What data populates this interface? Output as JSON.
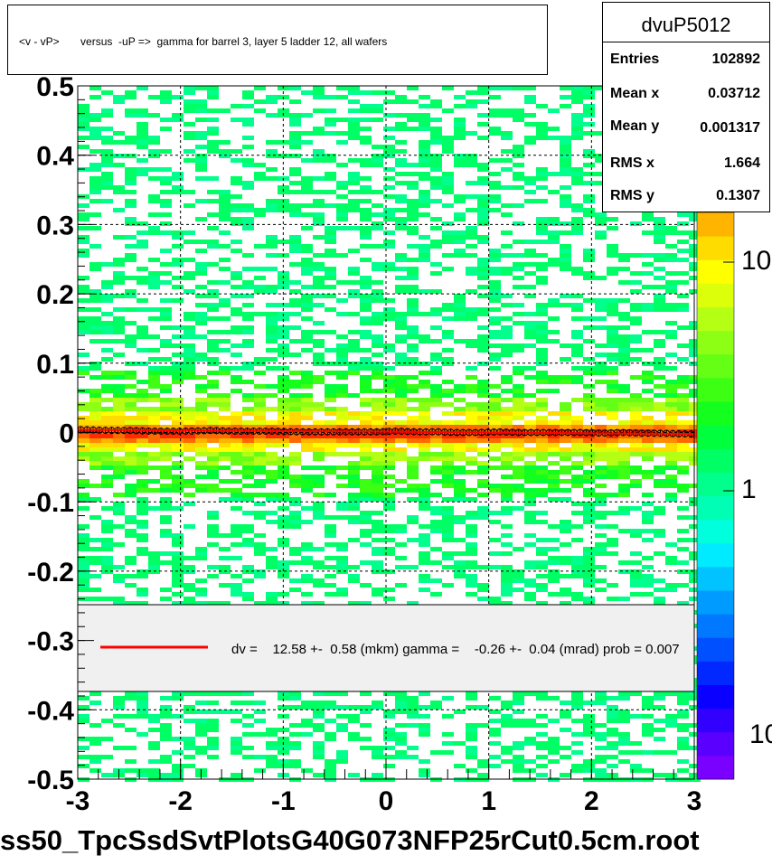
{
  "header": {
    "title": "<v - vP>       versus  -uP =>  gamma for barrel 3, layer 5 ladder 12, all wafers"
  },
  "stats": {
    "name": "dvuP5012",
    "rows": [
      {
        "label": "Entries",
        "value": "102892"
      },
      {
        "label": "Mean x",
        "value": "0.03712"
      },
      {
        "label": "Mean y",
        "value": "0.001317"
      },
      {
        "label": "RMS x",
        "value": "1.664"
      },
      {
        "label": "RMS y",
        "value": "0.1307"
      }
    ]
  },
  "legend": {
    "text": "dv =    12.58 +-  0.58 (mkm) gamma =    -0.26 +-  0.04 (mrad) prob = 0.007",
    "line_color": "#ff0000"
  },
  "footer": {
    "filename": "ss50_TpcSsdSvtPlotsG40G073NFP25rCut0.5cm.root"
  },
  "colorbar": {
    "labels": [
      "10",
      "1",
      "10"
    ],
    "colors": [
      "#7a00ff",
      "#5a00ff",
      "#3200ff",
      "#0a00ff",
      "#0028ff",
      "#0050ff",
      "#0078ff",
      "#009bff",
      "#00c3ff",
      "#00ebff",
      "#00ffdc",
      "#00ffb4",
      "#00ff8c",
      "#00ff64",
      "#00ff3c",
      "#14ff1e",
      "#3cff14",
      "#64ff14",
      "#8cff14",
      "#b4ff14",
      "#dcff0a",
      "#ffff00",
      "#ffdc00",
      "#ffb400"
    ]
  },
  "chart_data": {
    "type": "heatmap",
    "title": "<v - vP>       versus  -uP =>  gamma for barrel 3, layer 5 ladder 12, all wafers",
    "xlabel": "",
    "ylabel": "",
    "xlim": [
      -3,
      3
    ],
    "ylim": [
      -0.5,
      0.5
    ],
    "x_ticks": [
      "-3",
      "-2",
      "-1",
      "0",
      "1",
      "2",
      "3"
    ],
    "y_ticks": [
      "0.5",
      "0.4",
      "0.3",
      "0.2",
      "0.1",
      "0",
      "-0.1",
      "-0.2",
      "-0.3",
      "-0.4",
      "-0.5"
    ],
    "grid": true,
    "color_scale": "log",
    "profile": {
      "x": [
        -2.9,
        -2.7,
        -2.5,
        -2.3,
        -2.1,
        -1.9,
        -1.7,
        -1.5,
        -1.3,
        -1.1,
        -0.9,
        -0.7,
        -0.5,
        -0.3,
        -0.1,
        0.1,
        0.3,
        0.5,
        0.7,
        0.9,
        1.1,
        1.3,
        1.5,
        1.7,
        1.9,
        2.1,
        2.3,
        2.5,
        2.7,
        2.9
      ],
      "y": [
        0.004,
        0.003,
        0.003,
        0.002,
        0.002,
        0.002,
        0.003,
        0.002,
        0.002,
        0.002,
        0.001,
        0.001,
        0.001,
        0.001,
        0.001,
        0.002,
        0.001,
        0.001,
        0.0,
        0.0,
        0.001,
        0.0,
        0.0,
        0.0,
        0.0,
        -0.001,
        0.0,
        -0.001,
        -0.001,
        -0.002
      ]
    },
    "fit_line": {
      "y_at_xmin": 0.004,
      "y_at_xmax": -0.002,
      "color": "#ff0000"
    }
  }
}
